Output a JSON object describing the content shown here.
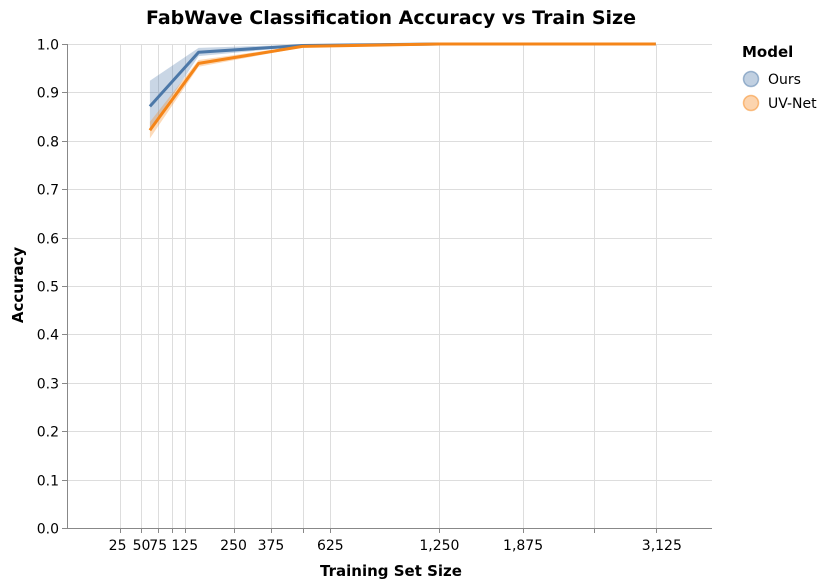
{
  "chart_data": {
    "type": "line",
    "title": "FabWave Classification Accuracy vs Train Size",
    "xlabel": "Training Set Size",
    "ylabel": "Accuracy",
    "x_scale": "sqrt",
    "xlim": [
      0,
      3750
    ],
    "ylim": [
      0,
      1
    ],
    "x_ticks": [
      25,
      50,
      75,
      125,
      250,
      375,
      625,
      1250,
      1875,
      3125
    ],
    "x_tick_labels": [
      "25",
      "50",
      "75",
      "125",
      "250",
      "375",
      "625",
      "1,250",
      "1,875",
      "3,125"
    ],
    "x_extra_gridlines": [
      100,
      500,
      2500
    ],
    "y_ticks": [
      0,
      0.1,
      0.2,
      0.3,
      0.4,
      0.5,
      0.6,
      0.7,
      0.8,
      0.9,
      1.0
    ],
    "y_tick_labels": [
      "0.0",
      "0.1",
      "0.2",
      "0.3",
      "0.4",
      "0.5",
      "0.6",
      "0.7",
      "0.8",
      "0.9",
      "1.0"
    ],
    "grid": true,
    "legend": {
      "title": "Model",
      "position": "top-right"
    },
    "series": [
      {
        "name": "Ours",
        "color": "#4c78a8",
        "x": [
          62,
          156,
          500,
          1250,
          3125
        ],
        "y": [
          0.871,
          0.983,
          0.997,
          1.0,
          1.0
        ],
        "ci_lower": [
          0.823,
          0.975,
          0.995,
          0.999,
          1.0
        ],
        "ci_upper": [
          0.924,
          0.992,
          0.999,
          1.0,
          1.0
        ]
      },
      {
        "name": "UV-Net",
        "color": "#f58518",
        "x": [
          62,
          156,
          500,
          1250,
          3125
        ],
        "y": [
          0.822,
          0.96,
          0.995,
          1.0,
          1.0
        ],
        "ci_lower": [
          0.805,
          0.953,
          0.993,
          0.999,
          1.0
        ],
        "ci_upper": [
          0.839,
          0.967,
          0.997,
          1.0,
          1.0
        ]
      }
    ]
  }
}
